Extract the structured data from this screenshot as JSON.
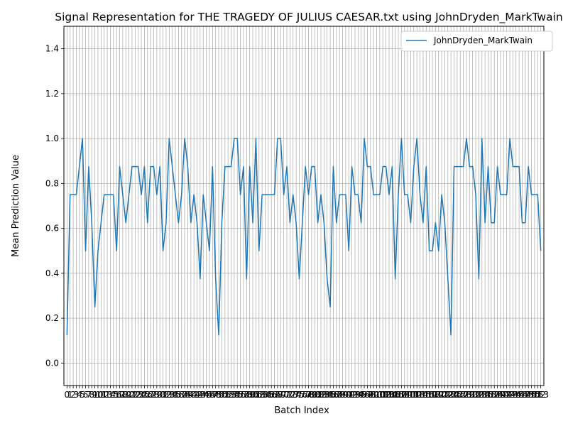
{
  "chart_data": {
    "type": "line",
    "title": "Signal Representation for THE TRAGEDY OF JULIUS CAESAR.txt using JohnDryden_MarkTwain",
    "xlabel": "Batch Index",
    "ylabel": "Mean Prediction Value",
    "xlim": [
      -1,
      154
    ],
    "ylim": [
      -0.1,
      1.5
    ],
    "yticks": [
      "0.0",
      "0.2",
      "0.4",
      "0.6",
      "0.8",
      "1.0",
      "1.2",
      "1.4"
    ],
    "ytick_values": [
      0.0,
      0.2,
      0.4,
      0.6,
      0.8,
      1.0,
      1.2,
      1.4
    ],
    "grid": true,
    "legend_position": "upper right",
    "series": [
      {
        "name": "JohnDryden_MarkTwain",
        "color": "#1f77b4",
        "x": [
          0,
          1,
          2,
          3,
          4,
          5,
          6,
          7,
          8,
          9,
          10,
          11,
          12,
          13,
          14,
          15,
          16,
          17,
          18,
          19,
          20,
          21,
          22,
          23,
          24,
          25,
          26,
          27,
          28,
          29,
          30,
          31,
          32,
          33,
          34,
          35,
          36,
          37,
          38,
          39,
          40,
          41,
          42,
          43,
          44,
          45,
          46,
          47,
          48,
          49,
          50,
          51,
          52,
          53,
          54,
          55,
          56,
          57,
          58,
          59,
          60,
          61,
          62,
          63,
          64,
          65,
          66,
          67,
          68,
          69,
          70,
          71,
          72,
          73,
          74,
          75,
          76,
          77,
          78,
          79,
          80,
          81,
          82,
          83,
          84,
          85,
          86,
          87,
          88,
          89,
          90,
          91,
          92,
          93,
          94,
          95,
          96,
          97,
          98,
          99,
          100,
          101,
          102,
          103,
          104,
          105,
          106,
          107,
          108,
          109,
          110,
          111,
          112,
          113,
          114,
          115,
          116,
          117,
          118,
          119,
          120,
          121,
          122,
          123,
          124,
          125,
          126,
          127,
          128,
          129,
          130,
          131,
          132,
          133,
          134,
          135,
          136,
          137,
          138,
          139,
          140,
          141,
          142,
          143,
          144,
          145,
          146,
          147,
          148,
          149,
          150,
          151,
          152,
          153
        ],
        "y": [
          0.125,
          0.75,
          0.75,
          0.75,
          0.875,
          1.0,
          0.5,
          0.875,
          0.625,
          0.25,
          0.5,
          0.625,
          0.75,
          0.75,
          0.75,
          0.75,
          0.5,
          0.875,
          0.75,
          0.625,
          0.75,
          0.875,
          0.875,
          0.875,
          0.75,
          0.875,
          0.625,
          0.875,
          0.875,
          0.75,
          0.875,
          0.5,
          0.625,
          1.0,
          0.875,
          0.75,
          0.625,
          0.75,
          1.0,
          0.875,
          0.625,
          0.75,
          0.625,
          0.375,
          0.75,
          0.625,
          0.5,
          0.875,
          0.375,
          0.125,
          0.625,
          0.875,
          0.875,
          0.875,
          1.0,
          1.0,
          0.75,
          0.875,
          0.375,
          0.875,
          0.625,
          1.0,
          0.5,
          0.75,
          0.75,
          0.75,
          0.75,
          0.75,
          1.0,
          1.0,
          0.75,
          0.875,
          0.625,
          0.75,
          0.625,
          0.375,
          0.625,
          0.875,
          0.75,
          0.875,
          0.875,
          0.625,
          0.75,
          0.625,
          0.375,
          0.25,
          0.875,
          0.625,
          0.75,
          0.75,
          0.75,
          0.5,
          0.875,
          0.75,
          0.75,
          0.625,
          1.0,
          0.875,
          0.875,
          0.75,
          0.75,
          0.75,
          0.875,
          0.875,
          0.75,
          0.875,
          0.375,
          0.75,
          1.0,
          0.75,
          0.75,
          0.625,
          0.875,
          1.0,
          0.75,
          0.625,
          0.875,
          0.5,
          0.5,
          0.625,
          0.5,
          0.75,
          0.625,
          0.375,
          0.125,
          0.875,
          0.875,
          0.875,
          0.875,
          1.0,
          0.875,
          0.875,
          0.75,
          0.375,
          1.0,
          0.625,
          0.875,
          0.625,
          0.625,
          0.875,
          0.75,
          0.75,
          0.75,
          1.0,
          0.875,
          0.875,
          0.875,
          0.625,
          0.625,
          0.875,
          0.75,
          0.75,
          0.75,
          0.5
        ]
      }
    ],
    "xtick_labels": [
      "0",
      "1",
      "2",
      "3",
      "4",
      "5",
      "6",
      "7",
      "8",
      "9",
      "10",
      "11",
      "12",
      "13",
      "14",
      "15",
      "16",
      "17",
      "18",
      "19",
      "20",
      "21",
      "22",
      "23",
      "24",
      "25",
      "26",
      "27",
      "28",
      "29",
      "30",
      "31",
      "32",
      "33",
      "34",
      "35",
      "36",
      "37",
      "38",
      "39",
      "40",
      "41",
      "42",
      "43",
      "44",
      "45",
      "46",
      "47",
      "48",
      "49",
      "50",
      "51",
      "52",
      "53",
      "54",
      "55",
      "56",
      "57",
      "58",
      "59",
      "60",
      "61",
      "62",
      "63",
      "64",
      "65",
      "66",
      "67",
      "68",
      "69",
      "70",
      "71",
      "72",
      "73",
      "74",
      "75",
      "76",
      "77",
      "78",
      "79",
      "80",
      "81",
      "82",
      "83",
      "84",
      "85",
      "86",
      "87",
      "88",
      "89",
      "90",
      "91",
      "92",
      "93",
      "94",
      "95",
      "96",
      "97",
      "98",
      "99",
      "100",
      "101",
      "102",
      "103",
      "104",
      "105",
      "106",
      "107",
      "108",
      "109",
      "110",
      "111",
      "112",
      "113",
      "114",
      "115",
      "116",
      "117",
      "118",
      "119",
      "120",
      "121",
      "122",
      "123",
      "124",
      "125",
      "126",
      "127",
      "128",
      "129",
      "130",
      "131",
      "132",
      "133",
      "134",
      "135",
      "136",
      "137",
      "138",
      "139",
      "140",
      "141",
      "142",
      "143",
      "144",
      "145",
      "146",
      "147",
      "148",
      "149",
      "150",
      "151",
      "152",
      "153"
    ]
  }
}
